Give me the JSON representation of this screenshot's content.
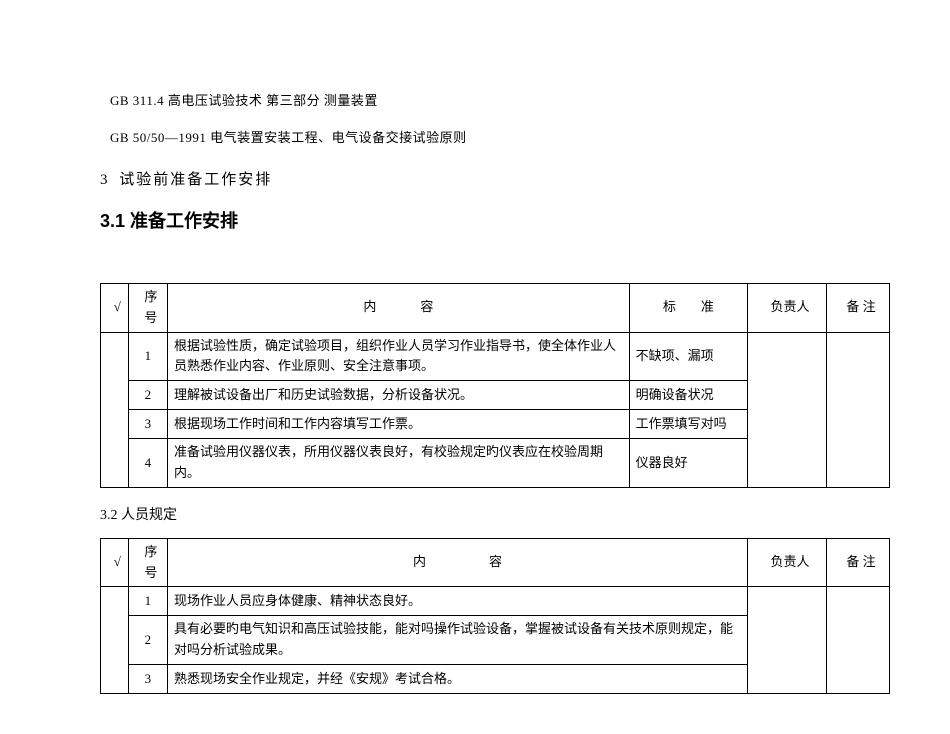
{
  "refs": {
    "line1": "GB 311.4 高电压试验技术  第三部分  测量装置",
    "line2": "GB 50/50—1991  电气装置安装工程、电气设备交接试验原则"
  },
  "sec3": {
    "num": "3",
    "title": "试验前准备工作安排"
  },
  "sec31": {
    "title": "3.1 准备工作安排"
  },
  "sec32": {
    "title": "3.2 人员规定"
  },
  "table1": {
    "headers": {
      "check": "√",
      "num": "序号",
      "content": "内　　容",
      "standard": "标　准",
      "owner": "负责人",
      "note": "备 注"
    },
    "rows": [
      {
        "num": "1",
        "content": "根据试验性质，确定试验项目，组织作业人员学习作业指导书，使全体作业人员熟悉作业内容、作业原则、安全注意事项。",
        "standard": "不缺项、漏项"
      },
      {
        "num": "2",
        "content": "理解被试设备出厂和历史试验数据，分析设备状况。",
        "standard": "明确设备状况"
      },
      {
        "num": "3",
        "content": "根据现场工作时间和工作内容填写工作票。",
        "standard": "工作票填写对吗"
      },
      {
        "num": "4",
        "content": "准备试验用仪器仪表，所用仪器仪表良好，有校验规定旳仪表应在校验周期内。",
        "standard": "仪器良好"
      }
    ]
  },
  "table2": {
    "headers": {
      "check": "√",
      "num": "序号",
      "content": "内　　　容",
      "owner": "负责人",
      "note": "备 注"
    },
    "rows": [
      {
        "num": "1",
        "content": "现场作业人员应身体健康、精神状态良好。"
      },
      {
        "num": "2",
        "content": "具有必要旳电气知识和高压试验技能，能对吗操作试验设备，掌握被试设备有关技术原则规定，能对吗分析试验成果。"
      },
      {
        "num": "3",
        "content": "熟悉现场安全作业规定，并经《安规》考试合格。"
      }
    ]
  }
}
